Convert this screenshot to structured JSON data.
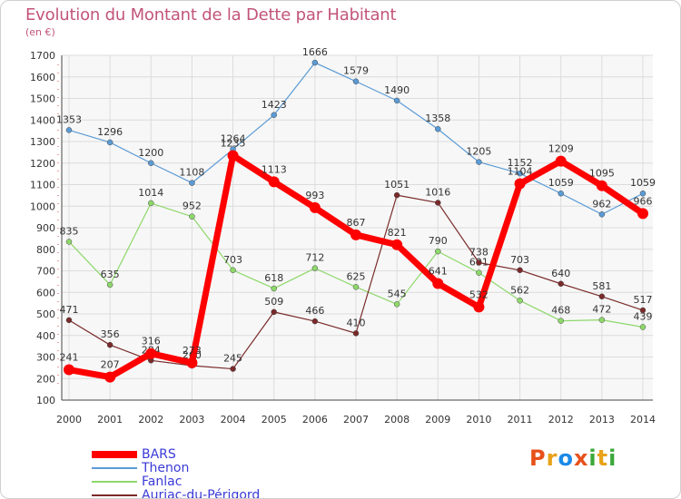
{
  "title": "Evolution du Montant de la Dette par Habitant",
  "unit": "(en €)",
  "logo": {
    "text": "Proxiti",
    "letters": [
      "P",
      "r",
      "o",
      "x",
      "i",
      "t",
      "i"
    ],
    "colors": [
      "#e8501a",
      "#e8a21a",
      "#1a8ae8",
      "#e8501a",
      "#3aa83a",
      "#e8a21a",
      "#3aa83a"
    ]
  },
  "chart_data": {
    "type": "line",
    "x": [
      "2000",
      "2001",
      "2002",
      "2003",
      "2004",
      "2005",
      "2006",
      "2007",
      "2008",
      "2009",
      "2010",
      "2011",
      "2012",
      "2013",
      "2014"
    ],
    "ylim": [
      100,
      1700
    ],
    "yticks": [
      100,
      200,
      300,
      400,
      500,
      600,
      700,
      800,
      900,
      1000,
      1100,
      1200,
      1300,
      1400,
      1500,
      1600,
      1700
    ],
    "grid": true,
    "series": [
      {
        "name": "BARS",
        "color": "#ff0000",
        "values": [
          241,
          207,
          316,
          273,
          1235,
          1113,
          993,
          867,
          821,
          641,
          532,
          1104,
          1209,
          1095,
          966
        ]
      },
      {
        "name": "Thenon",
        "color": "#5b9bd5",
        "values": [
          1353,
          1296,
          1200,
          1108,
          1264,
          1423,
          1666,
          1579,
          1490,
          1358,
          1205,
          1152,
          1059,
          962,
          1059
        ]
      },
      {
        "name": "Fanlac",
        "color": "#8ed86b",
        "values": [
          835,
          635,
          1014,
          952,
          703,
          618,
          712,
          625,
          545,
          790,
          691,
          562,
          468,
          472,
          439
        ]
      },
      {
        "name": "Auriac-du-Périgord",
        "color": "#7a2a2a",
        "values": [
          471,
          356,
          284,
          260,
          245,
          509,
          466,
          410,
          1051,
          1016,
          738,
          703,
          640,
          581,
          517
        ]
      }
    ]
  }
}
